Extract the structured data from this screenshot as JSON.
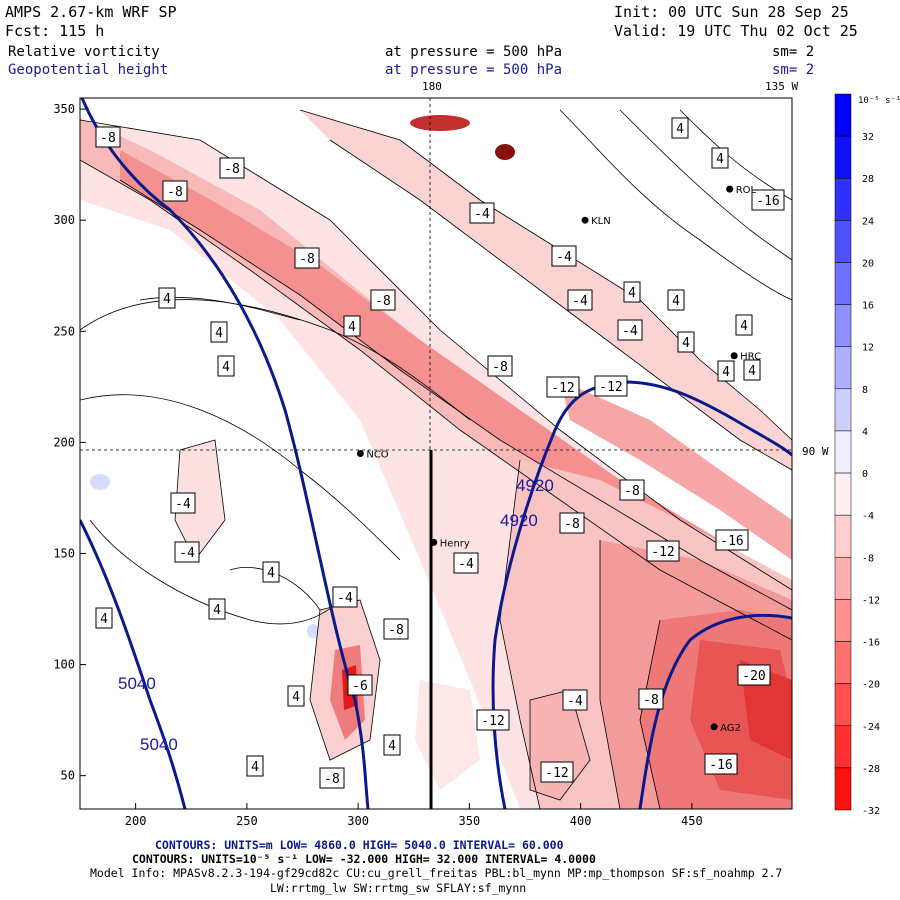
{
  "header": {
    "model": "AMPS 2.67-km WRF SP",
    "fcst": "Fcst:  115 h",
    "init": "Init: 00 UTC Sun 28 Sep 25",
    "valid": "Valid: 19 UTC Thu 02 Oct 25",
    "field1_name": "Relative vorticity",
    "field1_level": "at pressure =  500 hPa",
    "field1_sm": "sm= 2",
    "field2_name": "Geopotential height",
    "field2_level": "at pressure =  500 hPa",
    "field2_sm": "sm= 2"
  },
  "footer": {
    "contours_height": "CONTOURS:  UNITS=m  LOW=  4860.0          HIGH=  5040.0       INTERVAL=   60.000",
    "contours_vort": "CONTOURS:  UNITS=10⁻⁵ s⁻¹  LOW=  -32.000        HIGH=  32.000        INTERVAL=   4.0000",
    "model_info": "Model Info: MPASv8.2.3-194-gf29cd82c CU:cu_grell_freitas PBL:bl_mynn MP:mp_thompson SF:sf_noahmp 2.7",
    "model_info2": "LW:rrtmg_lw SW:rrtmg_sw SFLAY:sf_mynn"
  },
  "colors": {
    "height_contour": "#0a1a8c",
    "negative_max": "#ff0000",
    "positive_max": "#0000ff"
  },
  "chart_data": {
    "type": "heatmap",
    "title": "Relative vorticity / Geopotential height at 500 hPa",
    "x_ticks": [
      200,
      250,
      300,
      350,
      400,
      450
    ],
    "y_ticks": [
      50,
      100,
      150,
      200,
      250,
      300,
      350
    ],
    "xlim": [
      175,
      495
    ],
    "ylim": [
      35,
      355
    ],
    "colorbar": {
      "unit_label": "10⁻⁵ s⁻¹",
      "ticks": [
        32,
        28,
        24,
        20,
        16,
        12,
        8,
        4,
        0,
        -4,
        -8,
        -12,
        -16,
        -20,
        -24,
        -28,
        -32
      ],
      "range": [
        -32,
        32
      ],
      "interval": 4
    },
    "height_contours": [
      {
        "value": 5040,
        "labels": [
          "5040",
          "5040"
        ]
      },
      {
        "value": 4980,
        "labels": []
      },
      {
        "value": 4920,
        "labels": [
          "4920",
          "4920"
        ]
      }
    ],
    "vorticity_labels": [
      "-8",
      "-8",
      "-8",
      "-8",
      "-8",
      "-8",
      "-4",
      "-4",
      "-4",
      "-4",
      "-4",
      "-12",
      "-12",
      "-12",
      "-12",
      "-16",
      "-16",
      "-20",
      "-8",
      "-8",
      "4",
      "4",
      "4",
      "4",
      "4",
      "4",
      "4",
      "4",
      "4",
      "4",
      "4",
      "4",
      "4",
      "4",
      "4",
      "4",
      "4",
      "4",
      "-4",
      "-4",
      "-4",
      "-4",
      "-12",
      "-8",
      "-16",
      "-6",
      "-8",
      "-8"
    ],
    "stations": [
      {
        "name": "NCO",
        "x": 301,
        "y": 195
      },
      {
        "name": "Henry",
        "x": 334,
        "y": 155
      },
      {
        "name": "KLN",
        "x": 402,
        "y": 300
      },
      {
        "name": "ROL",
        "x": 467,
        "y": 314
      },
      {
        "name": "HRC",
        "x": 469,
        "y": 239
      },
      {
        "name": "AG2",
        "x": 460,
        "y": 72
      }
    ],
    "graticule": {
      "meridian_label": "180",
      "meridian2_label": "135 W",
      "parallel_label": "90 W",
      "meridian_x": 330,
      "parallel_y": 195
    }
  }
}
